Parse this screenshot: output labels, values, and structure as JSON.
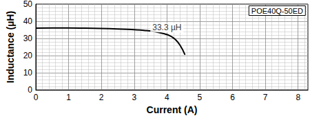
{
  "chart_data": {
    "type": "line",
    "title": "POE40Q-50ED",
    "x_label": "Current (A)",
    "y_label": "Inductance (µH)",
    "x": [
      0,
      0.5,
      1,
      1.5,
      2,
      2.5,
      3,
      3.3,
      3.6,
      3.9,
      4.1,
      4.25,
      4.4,
      4.55
    ],
    "values": [
      36,
      36.1,
      36.1,
      36,
      35.8,
      35.5,
      35.1,
      34.7,
      34,
      32.8,
      31.5,
      29.5,
      26,
      20.5
    ],
    "color": "#000000",
    "xlim": [
      0,
      8.3
    ],
    "xticks": [
      0,
      1,
      2,
      3,
      4,
      5,
      6,
      7,
      8
    ],
    "ylim": [
      0,
      50
    ],
    "yticks": [
      0,
      10,
      20,
      30,
      40,
      50
    ],
    "grid": true,
    "annotations": [
      {
        "text": "33.3 µH",
        "x": 4.0,
        "y": 36.3
      }
    ]
  }
}
